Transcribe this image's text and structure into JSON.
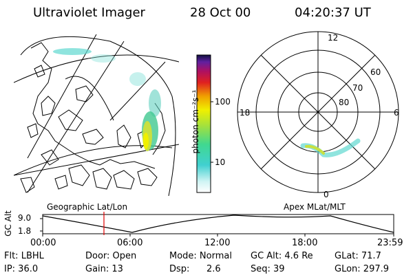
{
  "header": {
    "instrument": "Ultraviolet Imager",
    "date": "28 Oct 00",
    "time": "04:20:37 UT"
  },
  "colorbar": {
    "unit_label": "photon cm⁻²s⁻¹",
    "ticks": [
      "100",
      "10"
    ]
  },
  "polar": {
    "mlt_labels": [
      "12",
      "18",
      "6",
      "0"
    ],
    "lat_labels": [
      "60",
      "70",
      "80"
    ]
  },
  "panels": {
    "left_caption": "Geographic Lat/Lon",
    "right_caption": "Apex MLat/MLT"
  },
  "altitude_plot": {
    "axis_label": "GC Alt",
    "y_ticks": [
      "9.0",
      "1.8"
    ],
    "x_ticks": [
      "00:00",
      "06:00",
      "12:00",
      "18:00",
      "23:59"
    ]
  },
  "footer": {
    "row1": [
      "Flt: LBHL",
      "Door: Open",
      "Mode: Normal",
      "GC Alt: 4.6 Re",
      "GLat: 71.7"
    ],
    "row2": [
      "IP: 36.0",
      "Gain: 13",
      "Dsp:",
      "2.6",
      "Seq: 39",
      "GLon: 297.9"
    ]
  },
  "colors": {
    "marker": "#e00000",
    "aurora_low": "#60d8d0",
    "aurora_high": "#c8e040"
  }
}
